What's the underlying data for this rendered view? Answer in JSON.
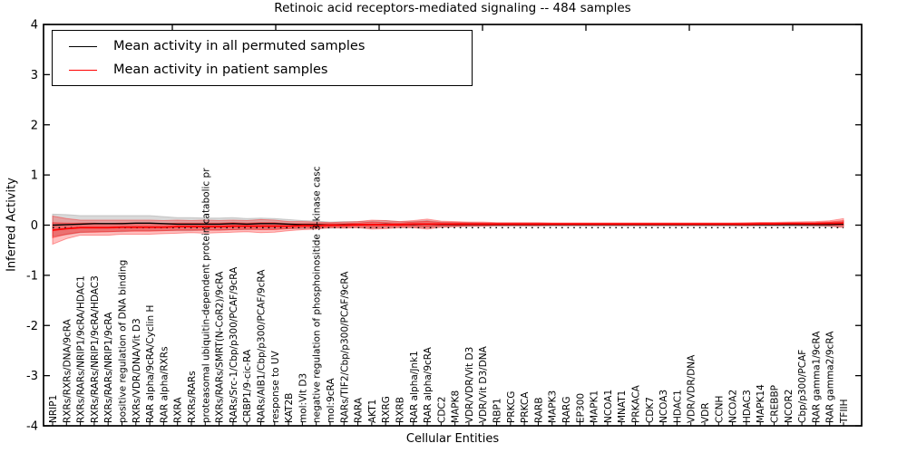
{
  "chart_data": {
    "type": "line",
    "title": "Retinoic acid receptors-mediated signaling -- 484 samples",
    "xlabel": "Cellular Entities",
    "ylabel": "Inferred Activity",
    "ylim": [
      -4,
      4
    ],
    "yticks": [
      "4",
      "3",
      "2",
      "1",
      "0",
      "-1",
      "-2",
      "-3",
      "-4"
    ],
    "ytick_values": [
      4,
      3,
      2,
      1,
      0,
      -1,
      -2,
      -3,
      -4
    ],
    "grid": false,
    "legend_position": "upper-left",
    "colors": {
      "permuted_line": "#000000",
      "patient_line": "#ff0000",
      "patient_band": "#ff0000",
      "permuted_band": "#aaaaaa",
      "frame": "#000000",
      "background": "#ffffff"
    },
    "categories": [
      "NRIP1",
      "RXRs/RXRs/DNA/9cRA",
      "RXRs/RARs/NRIP1/9cRA/HDAC1",
      "RXRs/RARs/NRIP1/9cRA/HDAC3",
      "RXRs/RARs/NRIP1/9cRA",
      "positive regulation of DNA binding",
      "RXRs/VDR/DNA/Vit D3",
      "RAR alpha/9cRA/Cyclin H",
      "RAR alpha/RXRs",
      "RXRA",
      "RXRs/RARs",
      "proteasomal ubiquitin-dependent protein catabolic pr",
      "RXRs/RARs/SMRT(N-CoR2)/9cRA",
      "RARs/Src-1/Cbp/p300/PCAF/9cRA",
      "CRBP1/9-cic-RA",
      "RARs/AIB1/Cbp/p300/PCAF/9cRA",
      "response to UV",
      "KAT2B",
      "mol:Vit D3",
      "negative regulation of phosphoinositide 3-kinase casc",
      "mol:9cRA",
      "RARs/TIF2/Cbp/p300/PCAF/9cRA",
      "RARA",
      "AKT1",
      "RXRG",
      "RXRB",
      "RAR alpha/Jnk1",
      "RAR alpha/9cRA",
      "CDC2",
      "MAPK8",
      "VDR/VDR/Vit D3",
      "VDR/Vit D3/DNA",
      "RBP1",
      "PRKCG",
      "PRKCA",
      "RARB",
      "MAPK3",
      "RARG",
      "EP300",
      "MAPK1",
      "NCOA1",
      "MNAT1",
      "PRKACA",
      "CDK7",
      "NCOA3",
      "HDAC1",
      "VDR/VDR/DNA",
      "VDR",
      "CCNH",
      "NCOA2",
      "HDAC3",
      "MAPK14",
      "CREBBP",
      "NCOR2",
      "Cbp/p300/PCAF",
      "RAR gamma1/9cRA",
      "RAR gamma2/9cRA",
      "TFIIH"
    ],
    "series": [
      {
        "name": "Mean activity in all permuted samples",
        "color": "#000000",
        "style": "solid",
        "values": [
          0.0,
          0.01,
          0.02,
          0.03,
          0.03,
          0.03,
          0.04,
          0.04,
          0.03,
          0.02,
          0.02,
          0.02,
          0.02,
          0.03,
          0.02,
          0.03,
          0.03,
          0.02,
          0.01,
          0.01,
          0.0,
          0.01,
          0.01,
          0.01,
          0.02,
          0.01,
          0.01,
          0.02,
          0.01,
          0.01,
          0.01,
          0.01,
          0.01,
          0.01,
          0.01,
          0.01,
          0.01,
          0.01,
          0.01,
          0.01,
          0.01,
          0.01,
          0.01,
          0.01,
          0.01,
          0.01,
          0.01,
          0.01,
          0.01,
          0.01,
          0.01,
          0.01,
          0.01,
          0.01,
          0.01,
          0.01,
          0.01,
          0.02
        ]
      },
      {
        "name": "Mean activity in patient samples",
        "color": "#ff0000",
        "style": "solid",
        "values": [
          -0.1,
          -0.07,
          -0.05,
          -0.05,
          -0.05,
          -0.04,
          -0.04,
          -0.04,
          -0.04,
          -0.03,
          -0.03,
          -0.03,
          -0.03,
          -0.02,
          -0.02,
          -0.02,
          -0.02,
          -0.02,
          -0.01,
          -0.01,
          0.0,
          0.0,
          0.01,
          0.01,
          0.01,
          0.01,
          0.02,
          0.02,
          0.02,
          0.02,
          0.02,
          0.02,
          0.02,
          0.02,
          0.02,
          0.02,
          0.02,
          0.02,
          0.02,
          0.02,
          0.02,
          0.02,
          0.02,
          0.02,
          0.02,
          0.02,
          0.02,
          0.02,
          0.02,
          0.02,
          0.02,
          0.025,
          0.025,
          0.03,
          0.03,
          0.03,
          0.035,
          0.04
        ]
      },
      {
        "name": "zero-baseline",
        "color": "#000000",
        "style": "dotted",
        "values": [
          -0.05,
          -0.05,
          -0.05,
          -0.05,
          -0.05,
          -0.05,
          -0.05,
          -0.05,
          -0.05,
          -0.05,
          -0.05,
          -0.05,
          -0.05,
          -0.05,
          -0.05,
          -0.05,
          -0.05,
          -0.05,
          -0.05,
          -0.05,
          -0.05,
          -0.05,
          -0.05,
          -0.05,
          -0.05,
          -0.05,
          -0.05,
          -0.05,
          -0.05,
          -0.05,
          -0.05,
          -0.05,
          -0.05,
          -0.05,
          -0.05,
          -0.05,
          -0.05,
          -0.05,
          -0.05,
          -0.05,
          -0.05,
          -0.05,
          -0.05,
          -0.05,
          -0.05,
          -0.05,
          -0.05,
          -0.05,
          -0.05,
          -0.05,
          -0.05,
          -0.05,
          -0.05,
          -0.05,
          -0.05,
          -0.05,
          -0.05,
          -0.05
        ]
      }
    ],
    "bands": [
      {
        "name": "permuted-std-band",
        "color": "#aaaaaa",
        "opacity": 0.45,
        "center_series": 0,
        "half_widths": [
          0.22,
          0.2,
          0.17,
          0.16,
          0.16,
          0.16,
          0.15,
          0.15,
          0.14,
          0.13,
          0.13,
          0.12,
          0.12,
          0.12,
          0.11,
          0.11,
          0.1,
          0.09,
          0.08,
          0.07,
          0.06,
          0.06,
          0.06,
          0.07,
          0.07,
          0.06,
          0.06,
          0.07,
          0.05,
          0.04,
          0.04,
          0.03,
          0.03,
          0.03,
          0.03,
          0.03,
          0.025,
          0.025,
          0.025,
          0.025,
          0.025,
          0.025,
          0.025,
          0.025,
          0.025,
          0.025,
          0.025,
          0.025,
          0.025,
          0.025,
          0.025,
          0.025,
          0.025,
          0.03,
          0.03,
          0.035,
          0.04,
          0.05
        ]
      },
      {
        "name": "patient-std-outer-band",
        "color": "#ff0000",
        "opacity": 0.25,
        "center_series": 1,
        "half_widths": [
          0.28,
          0.2,
          0.15,
          0.15,
          0.15,
          0.14,
          0.14,
          0.14,
          0.13,
          0.13,
          0.12,
          0.13,
          0.12,
          0.12,
          0.11,
          0.13,
          0.12,
          0.09,
          0.08,
          0.07,
          0.05,
          0.06,
          0.06,
          0.09,
          0.08,
          0.06,
          0.07,
          0.1,
          0.06,
          0.05,
          0.04,
          0.04,
          0.03,
          0.03,
          0.03,
          0.03,
          0.025,
          0.025,
          0.025,
          0.025,
          0.025,
          0.025,
          0.025,
          0.025,
          0.025,
          0.025,
          0.025,
          0.025,
          0.025,
          0.025,
          0.03,
          0.03,
          0.03,
          0.03,
          0.035,
          0.04,
          0.05,
          0.09
        ]
      },
      {
        "name": "patient-std-inner-band",
        "color": "#ff0000",
        "opacity": 0.3,
        "center_series": 1,
        "half_widths": [
          0.15,
          0.11,
          0.09,
          0.09,
          0.08,
          0.08,
          0.08,
          0.08,
          0.07,
          0.07,
          0.07,
          0.07,
          0.07,
          0.07,
          0.06,
          0.07,
          0.07,
          0.05,
          0.04,
          0.04,
          0.03,
          0.03,
          0.03,
          0.05,
          0.04,
          0.03,
          0.04,
          0.055,
          0.03,
          0.03,
          0.02,
          0.02,
          0.017,
          0.017,
          0.017,
          0.017,
          0.014,
          0.014,
          0.014,
          0.014,
          0.014,
          0.014,
          0.014,
          0.014,
          0.014,
          0.014,
          0.014,
          0.014,
          0.014,
          0.014,
          0.017,
          0.017,
          0.017,
          0.017,
          0.02,
          0.022,
          0.028,
          0.05
        ]
      }
    ]
  },
  "legend": {
    "entries": [
      {
        "label": "Mean activity in all permuted samples",
        "color": "#000000"
      },
      {
        "label": "Mean activity in patient samples",
        "color": "#ff0000"
      }
    ]
  }
}
